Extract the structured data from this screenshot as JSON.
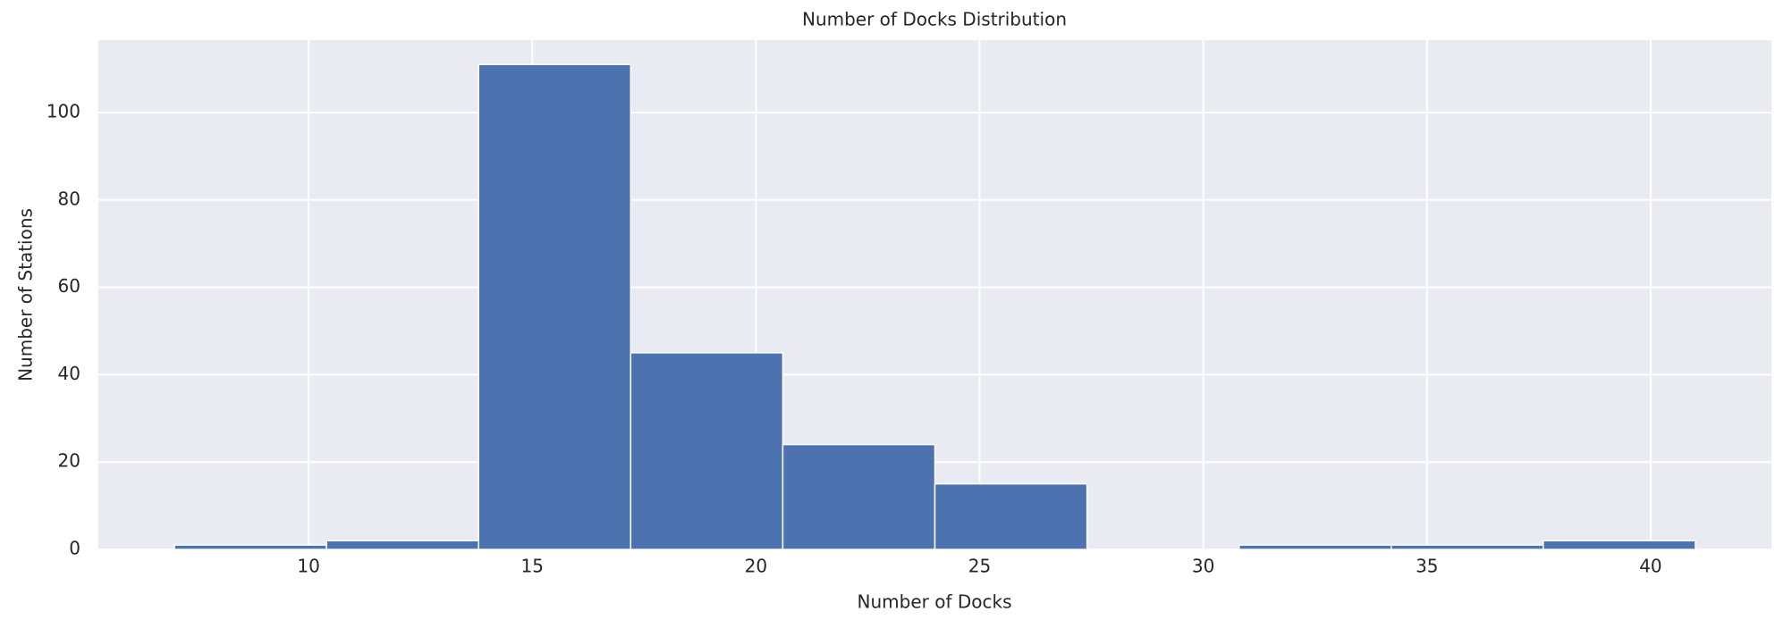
{
  "chart_data": {
    "type": "histogram",
    "title": "Number of Docks Distribution",
    "x_label": "Number of Docks",
    "y_label": "Number of Stations",
    "bins": [
      7,
      10.4,
      13.8,
      17.2,
      20.6,
      24,
      27.4,
      30.8,
      34.2,
      37.6,
      41
    ],
    "values": [
      1,
      2,
      111,
      45,
      24,
      15,
      0,
      1,
      1,
      2
    ],
    "color": "#4c72b0",
    "xlim": [
      5.3,
      42.7
    ],
    "ylim": [
      0,
      116.55
    ],
    "xticks": [
      10,
      15,
      20,
      25,
      30,
      35,
      40
    ],
    "yticks": [
      0,
      20,
      40,
      60,
      80,
      100
    ],
    "grid": true
  }
}
